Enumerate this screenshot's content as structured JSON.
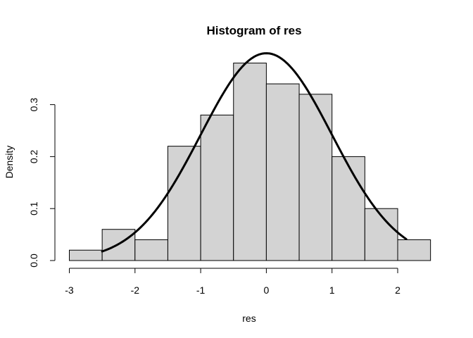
{
  "chart_data": {
    "type": "bar",
    "subtype": "histogram",
    "title": "Histogram of res",
    "xlabel": "res",
    "ylabel": "Density",
    "bins": [
      {
        "start": -3.0,
        "end": -2.5,
        "density": 0.02
      },
      {
        "start": -2.5,
        "end": -2.0,
        "density": 0.06
      },
      {
        "start": -2.0,
        "end": -1.5,
        "density": 0.04
      },
      {
        "start": -1.5,
        "end": -1.0,
        "density": 0.22
      },
      {
        "start": -1.0,
        "end": -0.5,
        "density": 0.28
      },
      {
        "start": -0.5,
        "end": 0.0,
        "density": 0.38
      },
      {
        "start": 0.0,
        "end": 0.5,
        "density": 0.34
      },
      {
        "start": 0.5,
        "end": 1.0,
        "density": 0.32
      },
      {
        "start": 1.0,
        "end": 1.5,
        "density": 0.2
      },
      {
        "start": 1.5,
        "end": 2.0,
        "density": 0.1
      },
      {
        "start": 2.0,
        "end": 2.5,
        "density": 0.04
      }
    ],
    "overlay_curve": {
      "type": "line",
      "description": "normal density curve",
      "mean": 0.0,
      "sd": 1.0,
      "x_range": [
        -2.5,
        2.13
      ]
    },
    "xlim": [
      -3.0,
      2.5
    ],
    "ylim": [
      0.0,
      0.38
    ],
    "x_ticks": [
      -3,
      -2,
      -1,
      0,
      1,
      2
    ],
    "y_ticks": [
      0.0,
      0.1,
      0.2,
      0.3
    ],
    "x_tick_labels": [
      "-3",
      "-2",
      "-1",
      "0",
      "1",
      "2"
    ],
    "y_tick_labels": [
      "0.0",
      "0.1",
      "0.2",
      "0.3"
    ],
    "grid": false,
    "legend": "none",
    "colors": {
      "bar_fill": "#d3d3d3",
      "bar_border": "#000000",
      "curve": "#000000",
      "background": "#ffffff"
    }
  }
}
